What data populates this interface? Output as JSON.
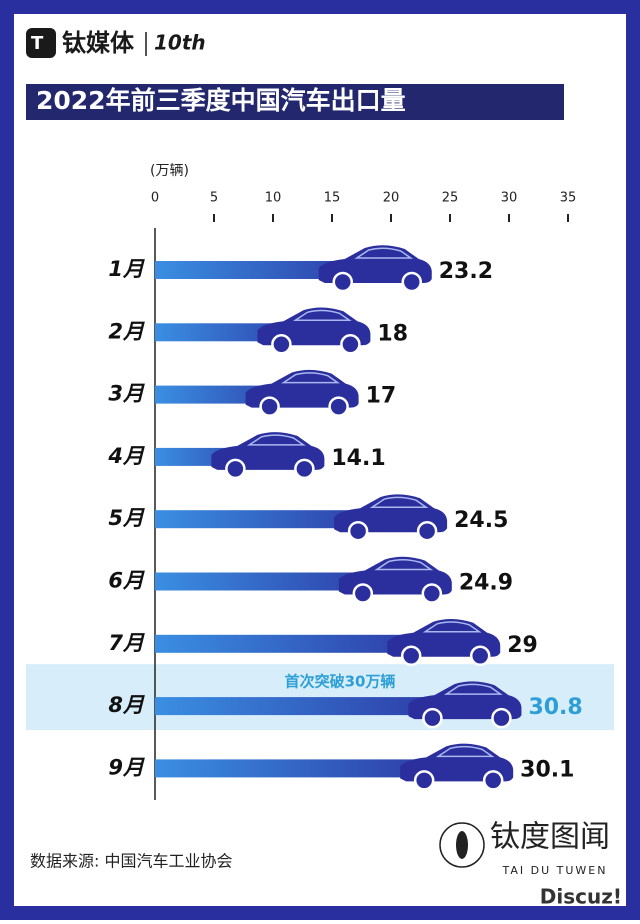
{
  "chart_data": {
    "type": "bar",
    "brand": "钛媒体",
    "brand_badge": "10th",
    "title": "2022年前三季度中国汽车出口量",
    "unit_label": "(万辆)",
    "categories": [
      "1月",
      "2月",
      "3月",
      "4月",
      "5月",
      "6月",
      "7月",
      "8月",
      "9月"
    ],
    "values": [
      23.2,
      18,
      17,
      14.1,
      24.5,
      24.9,
      29,
      30.8,
      30.1
    ],
    "color": "#2b2f9e",
    "highlight_color": "#2e9fd6",
    "annotation": {
      "text": "首次突破30万辆",
      "category": "8月"
    },
    "xlim": [
      0,
      35
    ],
    "xticks": [
      0,
      5,
      10,
      15,
      20,
      25,
      30,
      35
    ],
    "source": "数据来源: 中国汽车工业协会",
    "watermark": {
      "name": "钛度图闻",
      "subtitle": "TAI DU TUWEN",
      "site": "Discuz!"
    }
  }
}
